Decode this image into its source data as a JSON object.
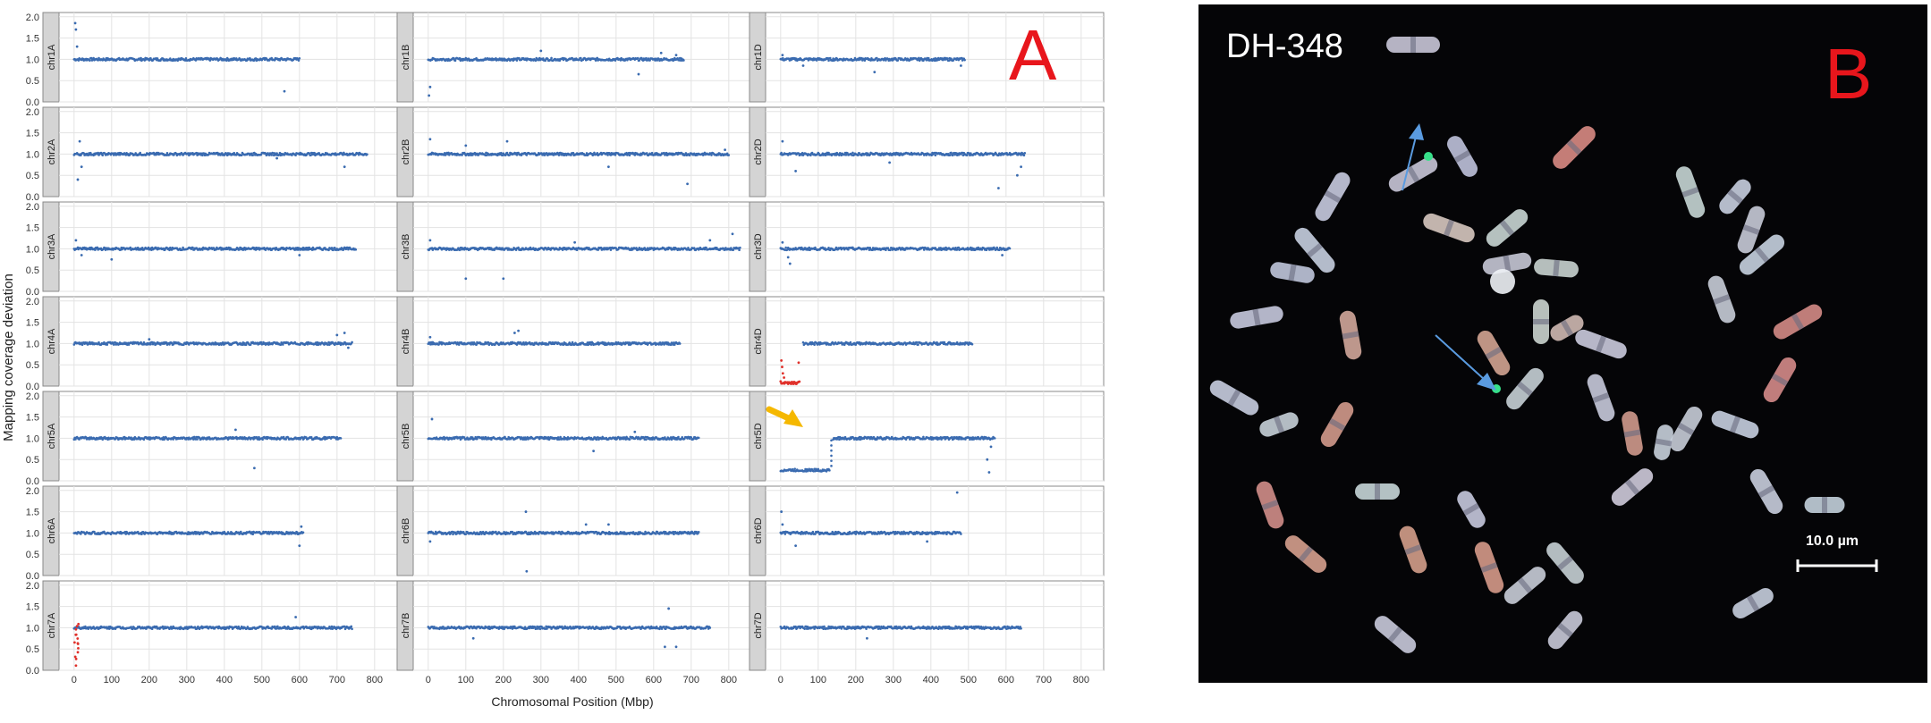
{
  "figure": {
    "panel_a_label": "A",
    "panel_b_label": "B"
  },
  "chart_data": {
    "type": "scatter",
    "ylabel": "Mapping coverage deviation",
    "xlabel": "Chromosomal Position (Mbp)",
    "xticks": [
      0,
      100,
      200,
      300,
      400,
      500,
      600,
      700,
      800
    ],
    "yticks": [
      "0.0",
      "0.5",
      "1.0",
      "1.5",
      "2.0"
    ],
    "xlim": [
      -40,
      860
    ],
    "ylim": [
      0,
      2.1
    ],
    "grid": true,
    "colors": {
      "normal": "#3a6bb0",
      "deleted": "#e0302a",
      "arrow": "#f5b800",
      "strip": "#d4d4d4"
    },
    "genome_columns": [
      "A",
      "B",
      "D"
    ],
    "panels": [
      {
        "name": "chr1A",
        "length": 600,
        "baseline": 1.0,
        "outliers": [
          [
            3,
            1.85
          ],
          [
            5,
            1.7
          ],
          [
            8,
            1.3
          ],
          [
            560,
            0.25
          ]
        ]
      },
      {
        "name": "chr1B",
        "length": 680,
        "baseline": 1.0,
        "outliers": [
          [
            2,
            0.15
          ],
          [
            5,
            0.35
          ],
          [
            300,
            1.2
          ],
          [
            560,
            0.65
          ],
          [
            620,
            1.15
          ],
          [
            660,
            1.1
          ]
        ]
      },
      {
        "name": "chr1D",
        "length": 490,
        "baseline": 1.0,
        "outliers": [
          [
            5,
            1.1
          ],
          [
            60,
            0.85
          ],
          [
            250,
            0.7
          ],
          [
            480,
            0.85
          ]
        ]
      },
      {
        "name": "chr2A",
        "length": 780,
        "baseline": 1.0,
        "outliers": [
          [
            10,
            0.4
          ],
          [
            15,
            1.3
          ],
          [
            20,
            0.7
          ],
          [
            540,
            0.9
          ],
          [
            720,
            0.7
          ]
        ]
      },
      {
        "name": "chr2B",
        "length": 800,
        "baseline": 1.0,
        "outliers": [
          [
            5,
            1.35
          ],
          [
            100,
            1.2
          ],
          [
            210,
            1.3
          ],
          [
            480,
            0.7
          ],
          [
            690,
            0.3
          ],
          [
            790,
            1.1
          ]
        ]
      },
      {
        "name": "chr2D",
        "length": 650,
        "baseline": 1.0,
        "outliers": [
          [
            5,
            1.3
          ],
          [
            40,
            0.6
          ],
          [
            290,
            0.8
          ],
          [
            580,
            0.2
          ],
          [
            630,
            0.5
          ],
          [
            640,
            0.7
          ]
        ]
      },
      {
        "name": "chr3A",
        "length": 750,
        "baseline": 1.0,
        "outliers": [
          [
            5,
            1.2
          ],
          [
            20,
            0.85
          ],
          [
            100,
            0.75
          ],
          [
            600,
            0.85
          ]
        ]
      },
      {
        "name": "chr3B",
        "length": 830,
        "baseline": 1.0,
        "outliers": [
          [
            5,
            1.2
          ],
          [
            100,
            0.3
          ],
          [
            200,
            0.3
          ],
          [
            390,
            1.15
          ],
          [
            750,
            1.2
          ],
          [
            810,
            1.35
          ]
        ]
      },
      {
        "name": "chr3D",
        "length": 610,
        "baseline": 1.0,
        "outliers": [
          [
            5,
            1.15
          ],
          [
            20,
            0.8
          ],
          [
            25,
            0.65
          ],
          [
            590,
            0.85
          ]
        ]
      },
      {
        "name": "chr4A",
        "length": 740,
        "baseline": 1.0,
        "outliers": [
          [
            200,
            1.1
          ],
          [
            700,
            1.2
          ],
          [
            720,
            1.25
          ],
          [
            730,
            0.9
          ]
        ]
      },
      {
        "name": "chr4B",
        "length": 670,
        "baseline": 1.0,
        "outliers": [
          [
            5,
            1.15
          ],
          [
            230,
            1.25
          ],
          [
            240,
            1.3
          ]
        ]
      },
      {
        "name": "chr4D",
        "length": 510,
        "baseline": 1.0,
        "outliers": [],
        "deletion": {
          "from": 0,
          "to": 50,
          "level": 0.05
        }
      },
      {
        "name": "chr5A",
        "length": 710,
        "baseline": 1.0,
        "outliers": [
          [
            430,
            1.2
          ],
          [
            480,
            0.3
          ]
        ]
      },
      {
        "name": "chr5B",
        "length": 720,
        "baseline": 1.0,
        "outliers": [
          [
            10,
            1.45
          ],
          [
            440,
            0.7
          ],
          [
            550,
            1.15
          ]
        ]
      },
      {
        "name": "chr5D",
        "length": 570,
        "baseline": 1.0,
        "outliers": [
          [
            550,
            0.5
          ],
          [
            555,
            0.2
          ],
          [
            560,
            0.8
          ]
        ],
        "low_segment": {
          "from": 0,
          "to": 130,
          "level": 0.25
        },
        "arrow": true
      },
      {
        "name": "chr6A",
        "length": 610,
        "baseline": 1.0,
        "outliers": [
          [
            600,
            0.7
          ],
          [
            605,
            1.15
          ]
        ]
      },
      {
        "name": "chr6B",
        "length": 720,
        "baseline": 1.0,
        "outliers": [
          [
            5,
            0.8
          ],
          [
            260,
            1.5
          ],
          [
            262,
            0.1
          ],
          [
            420,
            1.2
          ],
          [
            480,
            1.2
          ]
        ]
      },
      {
        "name": "chr6D",
        "length": 480,
        "baseline": 1.0,
        "outliers": [
          [
            2,
            1.5
          ],
          [
            5,
            1.2
          ],
          [
            40,
            0.7
          ],
          [
            390,
            0.8
          ],
          [
            470,
            1.95
          ]
        ]
      },
      {
        "name": "chr7A",
        "length": 740,
        "baseline": 1.0,
        "outliers": [
          [
            590,
            1.25
          ]
        ],
        "deletion_tail": true
      },
      {
        "name": "chr7B",
        "length": 750,
        "baseline": 1.0,
        "outliers": [
          [
            120,
            0.75
          ],
          [
            630,
            0.55
          ],
          [
            640,
            1.45
          ],
          [
            660,
            0.55
          ]
        ]
      },
      {
        "name": "chr7D",
        "length": 640,
        "baseline": 1.0,
        "outliers": [
          [
            230,
            0.75
          ]
        ]
      }
    ]
  },
  "micrograph": {
    "sample_id": "DH-348",
    "scale_label": "10.0 µm",
    "background": "#050507"
  }
}
